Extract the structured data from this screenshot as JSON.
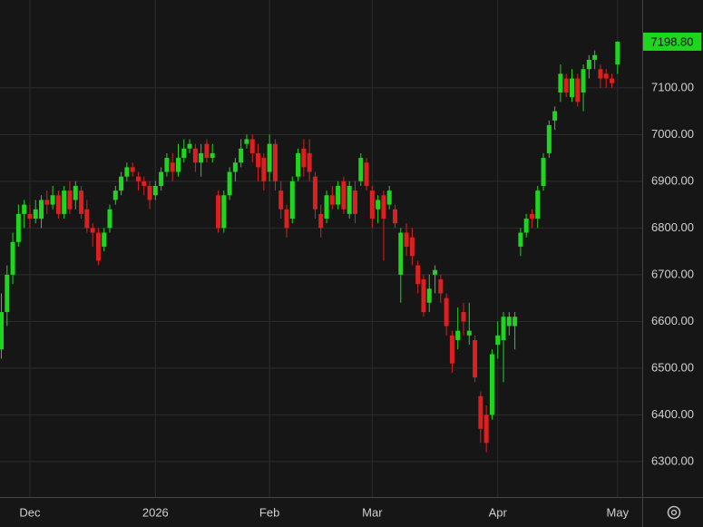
{
  "chart_data": {
    "type": "candlestick",
    "categories": [
      null,
      null,
      null,
      null,
      null,
      "Dec",
      null,
      null,
      null,
      null,
      null,
      null,
      null,
      null,
      null,
      null,
      null,
      null,
      null,
      null,
      null,
      null,
      null,
      null,
      null,
      null,
      null,
      "2026",
      null,
      null,
      null,
      null,
      null,
      null,
      null,
      null,
      null,
      null,
      null,
      null,
      null,
      null,
      null,
      null,
      null,
      null,
      null,
      "Feb",
      null,
      null,
      null,
      null,
      null,
      null,
      null,
      null,
      null,
      null,
      null,
      null,
      null,
      null,
      null,
      null,
      null,
      "Mar",
      null,
      null,
      null,
      null,
      null,
      null,
      null,
      null,
      null,
      null,
      null,
      null,
      null,
      null,
      null,
      null,
      null,
      null,
      null,
      null,
      null,
      "Apr",
      null,
      null,
      null,
      null,
      null,
      null,
      null,
      null,
      null,
      null,
      null,
      null,
      null,
      null,
      null,
      null,
      null,
      null,
      null,
      null,
      "May"
    ],
    "open": [
      6540,
      6620,
      6700,
      6770,
      6830,
      6830,
      6820,
      6820,
      6860,
      6850,
      6870,
      6830,
      6880,
      6860,
      6880,
      6840,
      6800,
      6790,
      6760,
      6800,
      6860,
      6880,
      6910,
      6930,
      6910,
      6900,
      6890,
      6870,
      6890,
      6920,
      6940,
      6920,
      6950,
      6970,
      6970,
      6940,
      6980,
      6950,
      6870,
      6800,
      6870,
      6920,
      6940,
      6980,
      6990,
      6960,
      6950,
      6920,
      6980,
      6880,
      6840,
      6820,
      6910,
      6970,
      6960,
      6910,
      6830,
      6820,
      6870,
      6850,
      6900,
      6830,
      6880,
      6900,
      6940,
      6880,
      6840,
      6870,
      6850,
      6840,
      6700,
      6790,
      6780,
      6720,
      6690,
      6640,
      6700,
      6690,
      6650,
      6570,
      6560,
      6620,
      6570,
      6560,
      6440,
      6400,
      6400,
      6550,
      6560,
      6590,
      6590,
      6760,
      6790,
      6830,
      6820,
      6890,
      6960,
      7030,
      7090,
      7120,
      7080,
      7120,
      7090,
      7140,
      7160,
      7140,
      7130,
      7120,
      7150
    ],
    "high": [
      6660,
      6720,
      6790,
      6850,
      6860,
      6850,
      6860,
      6870,
      6880,
      6890,
      6880,
      6890,
      6900,
      6900,
      6890,
      6860,
      6810,
      6800,
      6800,
      6850,
      6890,
      6920,
      6940,
      6940,
      6920,
      6910,
      6900,
      6900,
      6930,
      6960,
      6960,
      6980,
      6990,
      6990,
      6980,
      6980,
      6990,
      6980,
      6880,
      6880,
      6930,
      6950,
      6990,
      7000,
      7000,
      6980,
      6960,
      7000,
      6990,
      6900,
      6850,
      6910,
      6970,
      6990,
      6990,
      6920,
      6850,
      6880,
      6890,
      6900,
      6910,
      6900,
      6900,
      6960,
      6950,
      6890,
      6870,
      6880,
      6890,
      6850,
      6800,
      6810,
      6800,
      6730,
      6700,
      6700,
      6720,
      6700,
      6660,
      6580,
      6630,
      6640,
      6640,
      6570,
      6450,
      6420,
      6540,
      6600,
      6620,
      6620,
      6620,
      6800,
      6830,
      6840,
      6890,
      6960,
      7030,
      7060,
      7150,
      7130,
      7140,
      7130,
      7150,
      7170,
      7180,
      7150,
      7140,
      7130,
      7200
    ],
    "low": [
      6520,
      6590,
      6680,
      6760,
      6800,
      6800,
      6810,
      6800,
      6830,
      6840,
      6820,
      6820,
      6830,
      6840,
      6820,
      6790,
      6760,
      6720,
      6750,
      6790,
      6850,
      6870,
      6900,
      6910,
      6880,
      6870,
      6840,
      6860,
      6880,
      6910,
      6900,
      6910,
      6940,
      6960,
      6920,
      6910,
      6940,
      6940,
      6790,
      6790,
      6860,
      6900,
      6930,
      6970,
      6940,
      6900,
      6880,
      6900,
      6880,
      6820,
      6780,
      6810,
      6900,
      6910,
      6900,
      6820,
      6780,
      6810,
      6840,
      6840,
      6830,
      6820,
      6810,
      6890,
      6880,
      6800,
      6810,
      6730,
      6840,
      6800,
      6640,
      6740,
      6720,
      6660,
      6610,
      6620,
      6660,
      6640,
      6570,
      6490,
      6540,
      6570,
      6550,
      6470,
      6340,
      6320,
      6390,
      6520,
      6470,
      6570,
      6540,
      6740,
      6780,
      6800,
      6800,
      6880,
      6950,
      7010,
      7070,
      7080,
      7070,
      7060,
      7050,
      7120,
      7140,
      7100,
      7100,
      7100,
      7130
    ],
    "close": [
      6620,
      6700,
      6770,
      6830,
      6850,
      6820,
      6840,
      6860,
      6850,
      6870,
      6830,
      6880,
      6840,
      6890,
      6830,
      6800,
      6790,
      6730,
      6790,
      6840,
      6880,
      6910,
      6930,
      6920,
      6900,
      6890,
      6860,
      6890,
      6920,
      6950,
      6920,
      6950,
      6970,
      6980,
      6940,
      6960,
      6950,
      6960,
      6800,
      6870,
      6920,
      6940,
      6970,
      6990,
      6960,
      6930,
      6900,
      6980,
      6900,
      6840,
      6800,
      6900,
      6960,
      6930,
      6920,
      6840,
      6800,
      6870,
      6850,
      6890,
      6840,
      6890,
      6830,
      6950,
      6890,
      6820,
      6860,
      6820,
      6880,
      6810,
      6790,
      6760,
      6740,
      6680,
      6620,
      6670,
      6710,
      6660,
      6590,
      6510,
      6580,
      6600,
      6580,
      6480,
      6370,
      6340,
      6530,
      6570,
      6610,
      6610,
      6610,
      6790,
      6820,
      6820,
      6880,
      6950,
      7020,
      7050,
      7130,
      7090,
      7120,
      7070,
      7140,
      7160,
      7170,
      7120,
      7120,
      7110,
      7198.8
    ],
    "up_color": "#1ed61e",
    "down_color": "#dc1f1f",
    "ylim": [
      6224,
      7288
    ],
    "yticks": [
      {
        "value": 6300,
        "label": "6300.00"
      },
      {
        "value": 6400,
        "label": "6400.00"
      },
      {
        "value": 6500,
        "label": "6500.00"
      },
      {
        "value": 6600,
        "label": "6600.00"
      },
      {
        "value": 6700,
        "label": "6700.00"
      },
      {
        "value": 6800,
        "label": "6800.00"
      },
      {
        "value": 6900,
        "label": "6900.00"
      },
      {
        "value": 7000,
        "label": "7000.00"
      },
      {
        "value": 7100,
        "label": "7100.00"
      }
    ],
    "last_price": {
      "value": 7198.8,
      "label": "7198.80"
    },
    "grid": true
  }
}
